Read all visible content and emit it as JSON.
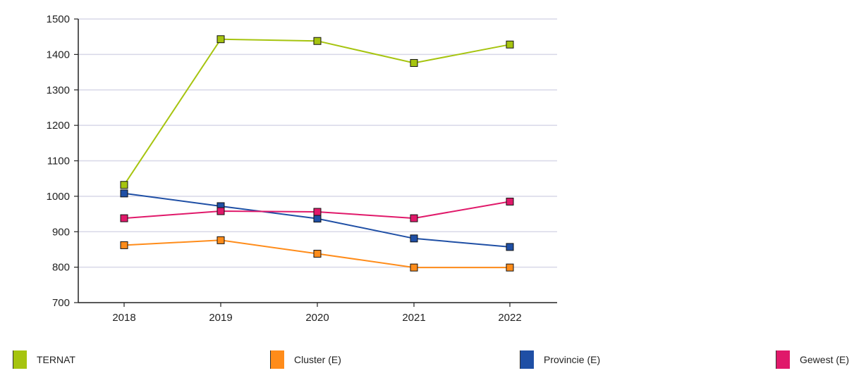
{
  "chart_data": {
    "type": "line",
    "title": "",
    "xlabel": "",
    "ylabel": "",
    "categories": [
      "2018",
      "2019",
      "2020",
      "2021",
      "2022"
    ],
    "ylim": [
      700,
      1500
    ],
    "yticks": [
      700,
      800,
      900,
      1000,
      1100,
      1200,
      1300,
      1400,
      1500
    ],
    "grid": "horizontal",
    "legend_position": "bottom",
    "series": [
      {
        "name": "TERNAT",
        "color": "#a6c40f",
        "values": [
          1032,
          1443,
          1438,
          1376,
          1428
        ]
      },
      {
        "name": "Cluster (E)",
        "color": "#ff8c1a",
        "values": [
          862,
          876,
          838,
          799,
          799
        ]
      },
      {
        "name": "Provincie (E)",
        "color": "#1f4fa5",
        "values": [
          1008,
          972,
          937,
          881,
          857
        ]
      },
      {
        "name": "Gewest (E)",
        "color": "#e0196a",
        "values": [
          938,
          958,
          956,
          938,
          985
        ]
      }
    ]
  }
}
